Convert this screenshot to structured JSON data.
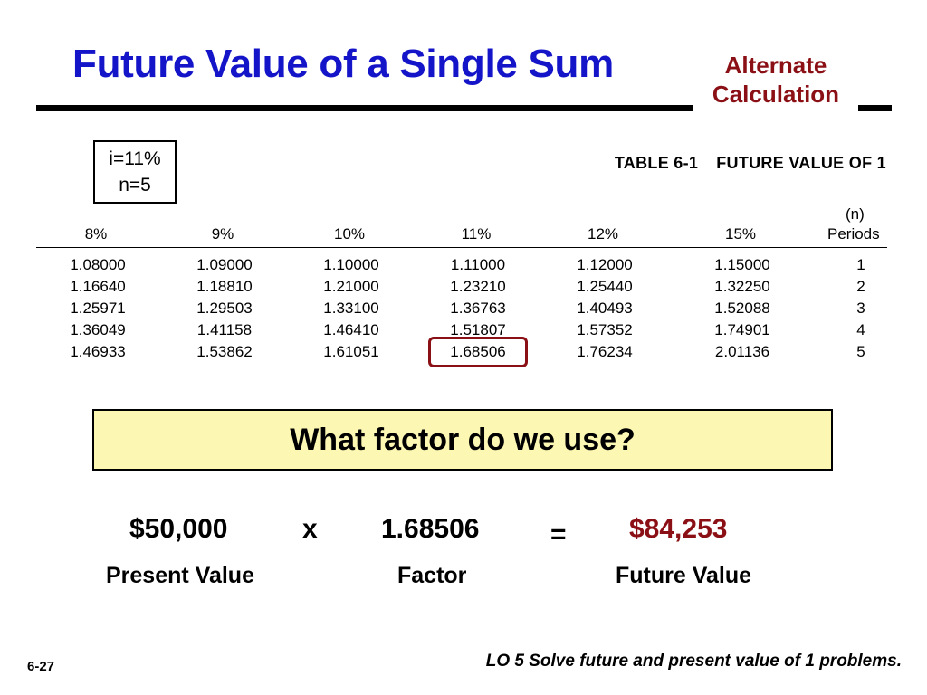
{
  "slide": {
    "title": "Future Value of a Single Sum",
    "alternate_line1": "Alternate",
    "alternate_line2": "Calculation",
    "inputs_line1": "i=11%",
    "inputs_line2": "n=5",
    "footer_number": "6-27",
    "footer_objective": "LO 5  Solve future and present value of 1 problems."
  },
  "table": {
    "number": "TABLE 6-1",
    "name": "FUTURE VALUE OF 1",
    "n_label": "(n)",
    "periods_label": "Periods",
    "rates": [
      "8%",
      "9%",
      "10%",
      "11%",
      "12%",
      "15%"
    ],
    "rows": [
      {
        "period": "1",
        "values": [
          "1.08000",
          "1.09000",
          "1.10000",
          "1.11000",
          "1.12000",
          "1.15000"
        ]
      },
      {
        "period": "2",
        "values": [
          "1.16640",
          "1.18810",
          "1.21000",
          "1.23210",
          "1.25440",
          "1.32250"
        ]
      },
      {
        "period": "3",
        "values": [
          "1.25971",
          "1.29503",
          "1.33100",
          "1.36763",
          "1.40493",
          "1.52088"
        ]
      },
      {
        "period": "4",
        "values": [
          "1.36049",
          "1.41158",
          "1.46410",
          "1.51807",
          "1.57352",
          "1.74901"
        ]
      },
      {
        "period": "5",
        "values": [
          "1.46933",
          "1.53862",
          "1.61051",
          "1.68506",
          "1.76234",
          "2.01136"
        ]
      }
    ],
    "highlight": {
      "rate": "11%",
      "period": "5"
    }
  },
  "question": "What factor do we use?",
  "equation": {
    "present_value": "$50,000",
    "times": "x",
    "factor": "1.68506",
    "equals": "=",
    "future_value": "$84,253",
    "present_value_label": "Present Value",
    "factor_label": "Factor",
    "future_value_label": "Future Value"
  },
  "colors": {
    "title": "#1414c8",
    "accent": "#8b1016",
    "question_bg": "#fdf7b4"
  }
}
